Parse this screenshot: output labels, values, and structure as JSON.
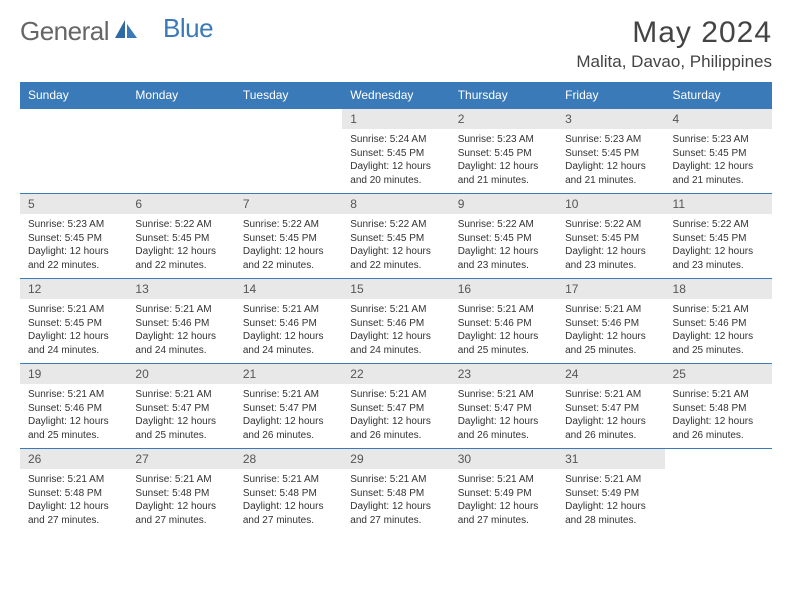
{
  "brand": {
    "part1": "General",
    "part2": "Blue"
  },
  "title": "May 2024",
  "location": "Malita, Davao, Philippines",
  "colors": {
    "accent": "#3a7ab8",
    "header_text": "#ffffff",
    "daynum_bg": "#e8e8e8",
    "body_text": "#333333",
    "page_bg": "#ffffff"
  },
  "typography": {
    "title_fontsize": 30,
    "location_fontsize": 17,
    "weekday_fontsize": 12,
    "daynum_fontsize": 12,
    "detail_fontsize": 10
  },
  "weekdays": [
    "Sunday",
    "Monday",
    "Tuesday",
    "Wednesday",
    "Thursday",
    "Friday",
    "Saturday"
  ],
  "weeks": [
    [
      null,
      null,
      null,
      {
        "n": "1",
        "sr": "Sunrise: 5:24 AM",
        "ss": "Sunset: 5:45 PM",
        "d1": "Daylight: 12 hours",
        "d2": "and 20 minutes."
      },
      {
        "n": "2",
        "sr": "Sunrise: 5:23 AM",
        "ss": "Sunset: 5:45 PM",
        "d1": "Daylight: 12 hours",
        "d2": "and 21 minutes."
      },
      {
        "n": "3",
        "sr": "Sunrise: 5:23 AM",
        "ss": "Sunset: 5:45 PM",
        "d1": "Daylight: 12 hours",
        "d2": "and 21 minutes."
      },
      {
        "n": "4",
        "sr": "Sunrise: 5:23 AM",
        "ss": "Sunset: 5:45 PM",
        "d1": "Daylight: 12 hours",
        "d2": "and 21 minutes."
      }
    ],
    [
      {
        "n": "5",
        "sr": "Sunrise: 5:23 AM",
        "ss": "Sunset: 5:45 PM",
        "d1": "Daylight: 12 hours",
        "d2": "and 22 minutes."
      },
      {
        "n": "6",
        "sr": "Sunrise: 5:22 AM",
        "ss": "Sunset: 5:45 PM",
        "d1": "Daylight: 12 hours",
        "d2": "and 22 minutes."
      },
      {
        "n": "7",
        "sr": "Sunrise: 5:22 AM",
        "ss": "Sunset: 5:45 PM",
        "d1": "Daylight: 12 hours",
        "d2": "and 22 minutes."
      },
      {
        "n": "8",
        "sr": "Sunrise: 5:22 AM",
        "ss": "Sunset: 5:45 PM",
        "d1": "Daylight: 12 hours",
        "d2": "and 22 minutes."
      },
      {
        "n": "9",
        "sr": "Sunrise: 5:22 AM",
        "ss": "Sunset: 5:45 PM",
        "d1": "Daylight: 12 hours",
        "d2": "and 23 minutes."
      },
      {
        "n": "10",
        "sr": "Sunrise: 5:22 AM",
        "ss": "Sunset: 5:45 PM",
        "d1": "Daylight: 12 hours",
        "d2": "and 23 minutes."
      },
      {
        "n": "11",
        "sr": "Sunrise: 5:22 AM",
        "ss": "Sunset: 5:45 PM",
        "d1": "Daylight: 12 hours",
        "d2": "and 23 minutes."
      }
    ],
    [
      {
        "n": "12",
        "sr": "Sunrise: 5:21 AM",
        "ss": "Sunset: 5:45 PM",
        "d1": "Daylight: 12 hours",
        "d2": "and 24 minutes."
      },
      {
        "n": "13",
        "sr": "Sunrise: 5:21 AM",
        "ss": "Sunset: 5:46 PM",
        "d1": "Daylight: 12 hours",
        "d2": "and 24 minutes."
      },
      {
        "n": "14",
        "sr": "Sunrise: 5:21 AM",
        "ss": "Sunset: 5:46 PM",
        "d1": "Daylight: 12 hours",
        "d2": "and 24 minutes."
      },
      {
        "n": "15",
        "sr": "Sunrise: 5:21 AM",
        "ss": "Sunset: 5:46 PM",
        "d1": "Daylight: 12 hours",
        "d2": "and 24 minutes."
      },
      {
        "n": "16",
        "sr": "Sunrise: 5:21 AM",
        "ss": "Sunset: 5:46 PM",
        "d1": "Daylight: 12 hours",
        "d2": "and 25 minutes."
      },
      {
        "n": "17",
        "sr": "Sunrise: 5:21 AM",
        "ss": "Sunset: 5:46 PM",
        "d1": "Daylight: 12 hours",
        "d2": "and 25 minutes."
      },
      {
        "n": "18",
        "sr": "Sunrise: 5:21 AM",
        "ss": "Sunset: 5:46 PM",
        "d1": "Daylight: 12 hours",
        "d2": "and 25 minutes."
      }
    ],
    [
      {
        "n": "19",
        "sr": "Sunrise: 5:21 AM",
        "ss": "Sunset: 5:46 PM",
        "d1": "Daylight: 12 hours",
        "d2": "and 25 minutes."
      },
      {
        "n": "20",
        "sr": "Sunrise: 5:21 AM",
        "ss": "Sunset: 5:47 PM",
        "d1": "Daylight: 12 hours",
        "d2": "and 25 minutes."
      },
      {
        "n": "21",
        "sr": "Sunrise: 5:21 AM",
        "ss": "Sunset: 5:47 PM",
        "d1": "Daylight: 12 hours",
        "d2": "and 26 minutes."
      },
      {
        "n": "22",
        "sr": "Sunrise: 5:21 AM",
        "ss": "Sunset: 5:47 PM",
        "d1": "Daylight: 12 hours",
        "d2": "and 26 minutes."
      },
      {
        "n": "23",
        "sr": "Sunrise: 5:21 AM",
        "ss": "Sunset: 5:47 PM",
        "d1": "Daylight: 12 hours",
        "d2": "and 26 minutes."
      },
      {
        "n": "24",
        "sr": "Sunrise: 5:21 AM",
        "ss": "Sunset: 5:47 PM",
        "d1": "Daylight: 12 hours",
        "d2": "and 26 minutes."
      },
      {
        "n": "25",
        "sr": "Sunrise: 5:21 AM",
        "ss": "Sunset: 5:48 PM",
        "d1": "Daylight: 12 hours",
        "d2": "and 26 minutes."
      }
    ],
    [
      {
        "n": "26",
        "sr": "Sunrise: 5:21 AM",
        "ss": "Sunset: 5:48 PM",
        "d1": "Daylight: 12 hours",
        "d2": "and 27 minutes."
      },
      {
        "n": "27",
        "sr": "Sunrise: 5:21 AM",
        "ss": "Sunset: 5:48 PM",
        "d1": "Daylight: 12 hours",
        "d2": "and 27 minutes."
      },
      {
        "n": "28",
        "sr": "Sunrise: 5:21 AM",
        "ss": "Sunset: 5:48 PM",
        "d1": "Daylight: 12 hours",
        "d2": "and 27 minutes."
      },
      {
        "n": "29",
        "sr": "Sunrise: 5:21 AM",
        "ss": "Sunset: 5:48 PM",
        "d1": "Daylight: 12 hours",
        "d2": "and 27 minutes."
      },
      {
        "n": "30",
        "sr": "Sunrise: 5:21 AM",
        "ss": "Sunset: 5:49 PM",
        "d1": "Daylight: 12 hours",
        "d2": "and 27 minutes."
      },
      {
        "n": "31",
        "sr": "Sunrise: 5:21 AM",
        "ss": "Sunset: 5:49 PM",
        "d1": "Daylight: 12 hours",
        "d2": "and 28 minutes."
      },
      null
    ]
  ]
}
